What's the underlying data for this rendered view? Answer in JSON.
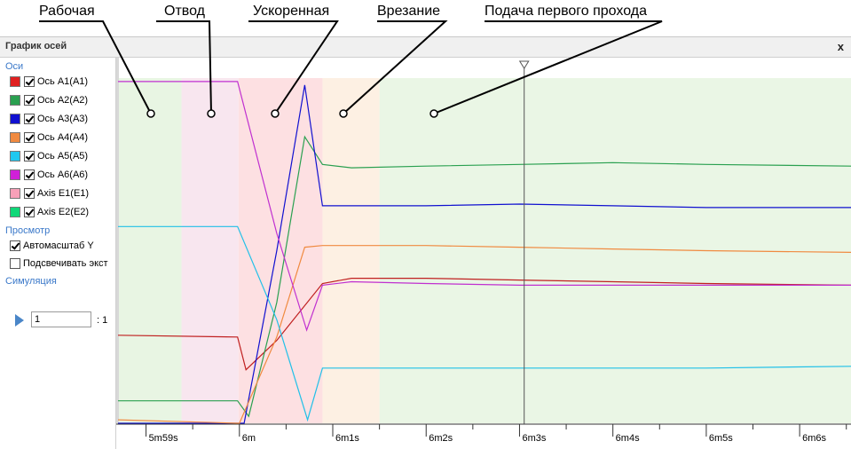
{
  "callouts": [
    {
      "text": "Рабочая"
    },
    {
      "text": "Отвод"
    },
    {
      "text": "Ускоренная"
    },
    {
      "text": "Врезание"
    },
    {
      "text": "Подача первого прохода"
    }
  ],
  "window": {
    "title": "График осей",
    "close_label": "x"
  },
  "sidebar": {
    "axes_section": "Оси",
    "axes": [
      {
        "label": "Ось A1(A1)",
        "color": "#e02020",
        "checked": true
      },
      {
        "label": "Ось A2(A2)",
        "color": "#2aa050",
        "checked": true
      },
      {
        "label": "Ось A3(A3)",
        "color": "#1010d0",
        "checked": true
      },
      {
        "label": "Ось A4(A4)",
        "color": "#f08a40",
        "checked": true
      },
      {
        "label": "Ось A5(A5)",
        "color": "#20c8f0",
        "checked": true
      },
      {
        "label": "Ось A6(A6)",
        "color": "#d020d8",
        "checked": true
      },
      {
        "label": "Axis E1(E1)",
        "color": "#f8a0b8",
        "checked": true
      },
      {
        "label": "Axis E2(E2)",
        "color": "#10d878",
        "checked": true
      }
    ],
    "view_section": "Просмотр",
    "autoscale_label": "Автомасштаб Y",
    "autoscale_checked": true,
    "highlight_label": "Подсвечивать экст",
    "highlight_checked": false,
    "sim_section": "Симуляция",
    "sim_value": "1",
    "sim_ratio": ": 1"
  },
  "chart_data": {
    "type": "line",
    "x_unit": "seconds",
    "xlim": [
      358.7,
      366.55
    ],
    "ylim": [
      0,
      1
    ],
    "cursor_x": 363.05,
    "x_ticks": [
      {
        "value": 359,
        "label": "5m59s"
      },
      {
        "value": 360,
        "label": "6m"
      },
      {
        "value": 361,
        "label": "6m1s"
      },
      {
        "value": 362,
        "label": "6m2s"
      },
      {
        "value": 363,
        "label": "6m3s"
      },
      {
        "value": 364,
        "label": "6m4s"
      },
      {
        "value": 365,
        "label": "6m5s"
      },
      {
        "value": 366,
        "label": "6m6s"
      }
    ],
    "regions": [
      {
        "from": 358.7,
        "to": 359.38,
        "color": "#e8f5e3"
      },
      {
        "from": 359.38,
        "to": 359.99,
        "color": "#f8e6ef"
      },
      {
        "from": 359.99,
        "to": 360.89,
        "color": "#fde0e2"
      },
      {
        "from": 360.89,
        "to": 361.5,
        "color": "#fdf0e3"
      },
      {
        "from": 361.5,
        "to": 366.55,
        "color": "#eaf6e5"
      }
    ],
    "series": [
      {
        "axis": "A1",
        "color": "#c02020",
        "x": [
          358.7,
          359.98,
          360.07,
          360.4,
          360.89,
          361.2,
          362,
          363,
          364,
          365,
          366.55
        ],
        "y": [
          0.255,
          0.25,
          0.155,
          0.24,
          0.405,
          0.42,
          0.42,
          0.415,
          0.41,
          0.405,
          0.4
        ]
      },
      {
        "axis": "A2",
        "color": "#2aa050",
        "x": [
          358.7,
          359.98,
          360.1,
          360.4,
          360.7,
          360.89,
          361.2,
          362,
          363,
          364,
          365,
          366.55
        ],
        "y": [
          0.065,
          0.065,
          0.02,
          0.35,
          0.83,
          0.75,
          0.74,
          0.745,
          0.75,
          0.755,
          0.75,
          0.745
        ]
      },
      {
        "axis": "A3",
        "color": "#1010d0",
        "x": [
          358.7,
          360.05,
          360.4,
          360.7,
          360.89,
          361.2,
          362,
          363,
          364,
          365,
          366.55
        ],
        "y": [
          0.0,
          0.0,
          0.5,
          0.98,
          0.63,
          0.63,
          0.63,
          0.635,
          0.63,
          0.625,
          0.625
        ]
      },
      {
        "axis": "A4",
        "color": "#f08a40",
        "x": [
          358.7,
          360.0,
          360.4,
          360.7,
          360.89,
          361.2,
          362,
          363,
          364,
          365,
          366.55
        ],
        "y": [
          0.01,
          0.0,
          0.25,
          0.51,
          0.515,
          0.515,
          0.515,
          0.51,
          0.505,
          0.5,
          0.495
        ]
      },
      {
        "axis": "A5",
        "color": "#20c0e8",
        "x": [
          358.7,
          359.98,
          360.4,
          360.73,
          360.89,
          361.2,
          362,
          363,
          364,
          365,
          366.55
        ],
        "y": [
          0.57,
          0.57,
          0.3,
          0.01,
          0.16,
          0.16,
          0.16,
          0.16,
          0.16,
          0.16,
          0.165
        ]
      },
      {
        "axis": "A6",
        "color": "#c030d0",
        "x": [
          358.7,
          359.98,
          360.4,
          360.72,
          360.89,
          361.2,
          362,
          363,
          364,
          365,
          366.55
        ],
        "y": [
          0.99,
          0.99,
          0.55,
          0.27,
          0.4,
          0.41,
          0.405,
          0.4,
          0.4,
          0.4,
          0.4
        ]
      }
    ]
  }
}
